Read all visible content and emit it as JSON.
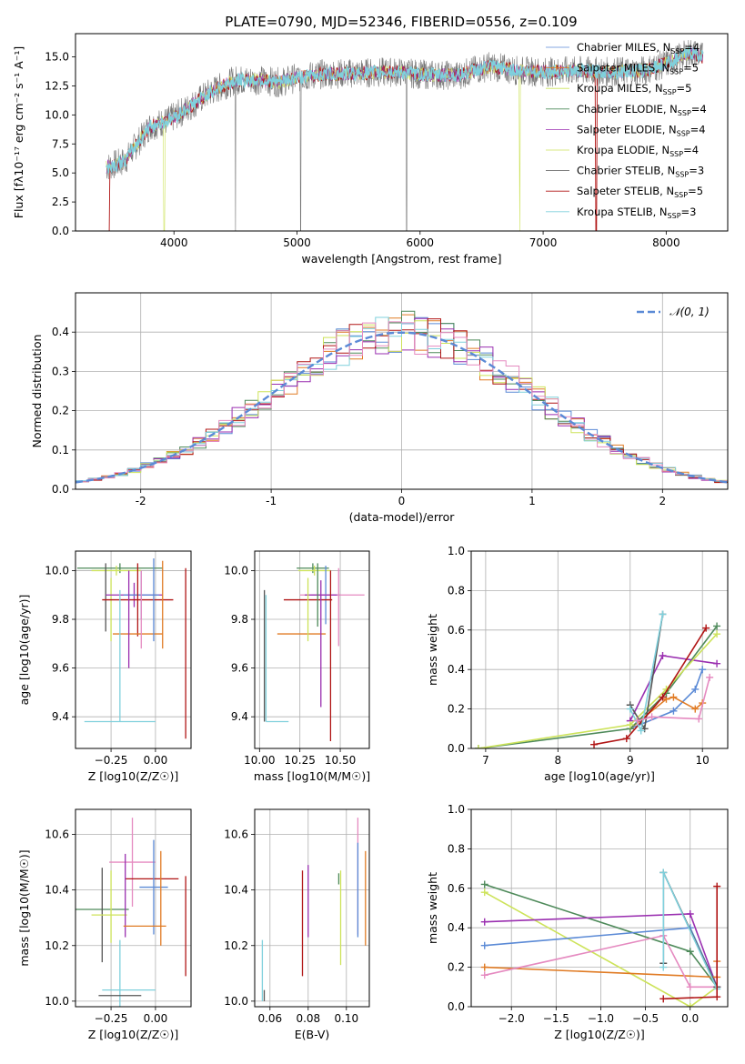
{
  "title": "PLATE=0790, MJD=52346, FIBERID=0556, z=0.109",
  "colors": {
    "blue": "#5b8ad6",
    "orange": "#e07b24",
    "green": "#4e8a5a",
    "purple": "#9a2fb0",
    "yellow": "#cde35a",
    "gray": "#555555",
    "red": "#b01515",
    "cyan": "#7fd0dc",
    "pink": "#e58ac0",
    "spectrum_gray": "#777777"
  },
  "chart_data": [
    {
      "id": "spectrum",
      "type": "line",
      "title": "PLATE=0790, MJD=52346, FIBERID=0556, z=0.109",
      "xlabel": "wavelength [Angstrom, rest frame]",
      "ylabel": "Flux [fλ10⁻¹⁷ erg cm⁻² s⁻¹ A⁻¹]",
      "xlim": [
        3200,
        8500
      ],
      "ylim": [
        0,
        17
      ],
      "xticks": [
        4000,
        5000,
        6000,
        7000,
        8000
      ],
      "yticks": [
        0.0,
        2.5,
        5.0,
        7.5,
        10.0,
        12.5,
        15.0
      ],
      "legend": "top-right",
      "grid": false,
      "x": [
        3450,
        3600,
        3800,
        3950,
        4100,
        4300,
        4500,
        4700,
        4861,
        5000,
        5200,
        5500,
        5800,
        6000,
        6300,
        6563,
        6800,
        7000,
        7300,
        7500,
        7800,
        8000,
        8200,
        8300
      ],
      "y": [
        5.5,
        6.0,
        9.0,
        9.5,
        10.5,
        12.0,
        13.0,
        13.0,
        12.8,
        13.2,
        13.5,
        13.6,
        13.7,
        13.5,
        13.4,
        14.2,
        13.8,
        13.7,
        13.8,
        13.7,
        13.8,
        14.4,
        15.4,
        15.0
      ],
      "series": [
        {
          "name": "Chabrier MILES, N_SSP=4",
          "color": "blue"
        },
        {
          "name": "Salpeter MILES, N_SSP=5",
          "color": "orange"
        },
        {
          "name": "Kroupa MILES, N_SSP=5",
          "color": "yellow"
        },
        {
          "name": "Chabrier ELODIE, N_SSP=4",
          "color": "green"
        },
        {
          "name": "Salpeter ELODIE, N_SSP=4",
          "color": "purple"
        },
        {
          "name": "Kroupa ELODIE, N_SSP=4",
          "color": "yellow"
        },
        {
          "name": "Chabrier STELIB, N_SSP=3",
          "color": "gray"
        },
        {
          "name": "Salpeter STELIB, N_SSP=5",
          "color": "red"
        },
        {
          "name": "Kroupa STELIB, N_SSP=3",
          "color": "cyan"
        }
      ],
      "legend_entries": [
        {
          "pre": "Chabrier MILES, N",
          "sub": "SSP",
          "post": "=4",
          "color": "blue"
        },
        {
          "pre": "Salpeter MILES, N",
          "sub": "SSP",
          "post": "=5",
          "color": "orange"
        },
        {
          "pre": "Kroupa MILES, N",
          "sub": "SSP",
          "post": "=5",
          "color": "yellow"
        },
        {
          "pre": "Chabrier ELODIE, N",
          "sub": "SSP",
          "post": "=4",
          "color": "green"
        },
        {
          "pre": "Salpeter ELODIE, N",
          "sub": "SSP",
          "post": "=4",
          "color": "purple"
        },
        {
          "pre": "Kroupa ELODIE, N",
          "sub": "SSP",
          "post": "=4",
          "color": "yellow"
        },
        {
          "pre": "Chabrier STELIB, N",
          "sub": "SSP",
          "post": "=3",
          "color": "gray"
        },
        {
          "pre": "Salpeter STELIB, N",
          "sub": "SSP",
          "post": "=5",
          "color": "red"
        },
        {
          "pre": "Kroupa STELIB, N",
          "sub": "SSP",
          "post": "=3",
          "color": "cyan"
        }
      ]
    },
    {
      "id": "residuals",
      "type": "line",
      "xlabel": "(data-model)/error",
      "ylabel": "Normed distribution",
      "xlim": [
        -2.5,
        2.5
      ],
      "ylim": [
        0,
        0.5
      ],
      "xticks": [
        -2,
        -1,
        0,
        1,
        2
      ],
      "yticks": [
        0.0,
        0.1,
        0.2,
        0.3,
        0.4
      ],
      "grid": true,
      "legend": "top-right",
      "legend_label": "𝒩(0, 1)",
      "bin_width": 0.1,
      "gaussian": {
        "mean": 0,
        "sigma": 1
      }
    },
    {
      "id": "age_vs_Z",
      "type": "scatter",
      "xlabel": "Z [log10(Z/Z☉)]",
      "ylabel": "age  [log10(age/yr)]",
      "xlim": [
        -0.45,
        0.2
      ],
      "ylim": [
        9.27,
        10.08
      ],
      "xticks": [
        -0.25,
        0.0
      ],
      "yticks": [
        9.4,
        9.6,
        9.8,
        10.0
      ],
      "grid": true,
      "points": [
        {
          "x": -0.2,
          "y": 10.01,
          "xerr": 0.24,
          "yerr": 0.02,
          "color": "green"
        },
        {
          "x": -0.22,
          "y": 10.0,
          "xerr": 0.14,
          "yerr": 0.02,
          "color": "yellow"
        },
        {
          "x": -0.28,
          "y": 9.89,
          "xerr": 0.0,
          "yerr": 0.14,
          "color": "gray"
        },
        {
          "x": -0.25,
          "y": 9.84,
          "xerr": 0.0,
          "yerr": 0.13,
          "color": "yellow"
        },
        {
          "x": -0.12,
          "y": 9.9,
          "xerr": 0.16,
          "yerr": 0.05,
          "color": "purple"
        },
        {
          "x": -0.08,
          "y": 9.9,
          "xerr": 0.1,
          "yerr": 0.1,
          "color": "blue"
        },
        {
          "x": -0.1,
          "y": 9.88,
          "xerr": 0.2,
          "yerr": 0.15,
          "color": "red"
        },
        {
          "x": -0.1,
          "y": 9.74,
          "xerr": 0.14,
          "yerr": 0.0,
          "color": "orange"
        },
        {
          "x": -0.08,
          "y": 9.84,
          "xerr": 0.0,
          "yerr": 0.16,
          "color": "pink"
        },
        {
          "x": -0.15,
          "y": 9.8,
          "xerr": 0.0,
          "yerr": 0.2,
          "color": "purple"
        },
        {
          "x": 0.04,
          "y": 9.86,
          "xerr": 0.0,
          "yerr": 0.18,
          "color": "orange"
        },
        {
          "x": 0.17,
          "y": 9.66,
          "xerr": 0.0,
          "yerr": 0.35,
          "color": "red"
        },
        {
          "x": -0.2,
          "y": 9.38,
          "xerr": 0.2,
          "yerr": 0.0,
          "color": "cyan"
        },
        {
          "x": -0.2,
          "y": 9.65,
          "xerr": 0.0,
          "yerr": 0.27,
          "color": "cyan"
        },
        {
          "x": -0.01,
          "y": 9.88,
          "xerr": 0.0,
          "yerr": 0.17,
          "color": "blue"
        }
      ]
    },
    {
      "id": "age_vs_mass",
      "type": "scatter",
      "xlabel": "mass [log10(M/M☉)]",
      "ylabel": "",
      "xlim": [
        9.97,
        10.68
      ],
      "ylim": [
        9.27,
        10.08
      ],
      "xticks": [
        10.0,
        10.25,
        10.5
      ],
      "yticks": [
        9.4,
        9.6,
        9.8,
        10.0
      ],
      "grid": true,
      "points": [
        {
          "x": 10.33,
          "y": 10.01,
          "xerr": 0.1,
          "yerr": 0.02,
          "color": "green"
        },
        {
          "x": 10.34,
          "y": 10.0,
          "xerr": 0.1,
          "yerr": 0.02,
          "color": "yellow"
        },
        {
          "x": 10.41,
          "y": 9.9,
          "xerr": 0.09,
          "yerr": 0.12,
          "color": "blue"
        },
        {
          "x": 10.45,
          "y": 9.9,
          "xerr": 0.2,
          "yerr": 0.0,
          "color": "pink"
        },
        {
          "x": 10.38,
          "y": 9.9,
          "xerr": 0.1,
          "yerr": 0.0,
          "color": "purple"
        },
        {
          "x": 10.3,
          "y": 9.88,
          "xerr": 0.15,
          "yerr": 0.0,
          "color": "red"
        },
        {
          "x": 10.26,
          "y": 9.74,
          "xerr": 0.15,
          "yerr": 0.0,
          "color": "orange"
        },
        {
          "x": 10.3,
          "y": 9.84,
          "xerr": 0.0,
          "yerr": 0.13,
          "color": "yellow"
        },
        {
          "x": 10.44,
          "y": 9.65,
          "xerr": 0.0,
          "yerr": 0.35,
          "color": "red"
        },
        {
          "x": 10.38,
          "y": 9.7,
          "xerr": 0.0,
          "yerr": 0.26,
          "color": "purple"
        },
        {
          "x": 10.49,
          "y": 9.85,
          "xerr": 0.0,
          "yerr": 0.16,
          "color": "pink"
        },
        {
          "x": 10.03,
          "y": 9.65,
          "xerr": 0.0,
          "yerr": 0.27,
          "color": "gray"
        },
        {
          "x": 10.04,
          "y": 9.64,
          "xerr": 0.0,
          "yerr": 0.26,
          "color": "cyan"
        },
        {
          "x": 10.11,
          "y": 9.38,
          "xerr": 0.07,
          "yerr": 0.0,
          "color": "cyan"
        },
        {
          "x": 10.36,
          "y": 9.9,
          "xerr": 0.0,
          "yerr": 0.13,
          "color": "green"
        }
      ]
    },
    {
      "id": "weight_vs_age",
      "type": "line",
      "xlabel": "age  [log10(age/yr)]",
      "ylabel": "mass weight",
      "xlim": [
        6.8,
        10.35
      ],
      "ylim": [
        0,
        1
      ],
      "xticks": [
        7,
        8,
        9,
        10
      ],
      "yticks": [
        0.0,
        0.2,
        0.4,
        0.6,
        0.8,
        1.0
      ],
      "grid": true,
      "series": [
        {
          "color": "blue",
          "x": [
            9.0,
            9.6,
            9.9,
            10.0
          ],
          "y": [
            0.1,
            0.19,
            0.3,
            0.4
          ]
        },
        {
          "color": "orange",
          "x": [
            9.0,
            9.5,
            9.6,
            9.9,
            10.0
          ],
          "y": [
            0.1,
            0.25,
            0.26,
            0.2,
            0.23
          ]
        },
        {
          "color": "green",
          "x": [
            6.9,
            9.0,
            9.5,
            10.2
          ],
          "y": [
            0.0,
            0.1,
            0.28,
            0.62
          ]
        },
        {
          "color": "purple",
          "x": [
            9.0,
            9.45,
            10.2
          ],
          "y": [
            0.14,
            0.47,
            0.43
          ]
        },
        {
          "color": "yellow",
          "x": [
            6.9,
            9.0,
            9.5,
            10.2
          ],
          "y": [
            0.0,
            0.12,
            0.3,
            0.58
          ]
        },
        {
          "color": "gray",
          "x": [
            9.0,
            9.2,
            9.45
          ],
          "y": [
            0.22,
            0.1,
            0.68
          ]
        },
        {
          "color": "red",
          "x": [
            8.5,
            8.95,
            9.45,
            10.05
          ],
          "y": [
            0.02,
            0.05,
            0.26,
            0.61
          ]
        },
        {
          "color": "cyan",
          "x": [
            9.0,
            9.15,
            9.45
          ],
          "y": [
            0.2,
            0.09,
            0.68
          ]
        },
        {
          "color": "pink",
          "x": [
            9.1,
            9.3,
            9.95,
            10.1
          ],
          "y": [
            0.14,
            0.16,
            0.15,
            0.36
          ]
        }
      ]
    },
    {
      "id": "mass_vs_Z",
      "type": "scatter",
      "xlabel": "Z [log10(Z/Z☉)]",
      "ylabel": "mass [log10(M/M☉)]",
      "xlim": [
        -0.45,
        0.2
      ],
      "ylim": [
        9.98,
        10.69
      ],
      "xticks": [
        -0.25,
        0.0
      ],
      "yticks": [
        10.0,
        10.2,
        10.4,
        10.6
      ],
      "grid": true,
      "points": [
        {
          "x": -0.13,
          "y": 10.5,
          "xerr": 0.13,
          "yerr": 0.16,
          "color": "pink"
        },
        {
          "x": -0.02,
          "y": 10.44,
          "xerr": 0.15,
          "yerr": 0.0,
          "color": "red"
        },
        {
          "x": -0.01,
          "y": 10.41,
          "xerr": 0.08,
          "yerr": 0.17,
          "color": "blue"
        },
        {
          "x": -0.3,
          "y": 10.33,
          "xerr": 0.15,
          "yerr": 0.0,
          "color": "green"
        },
        {
          "x": -0.3,
          "y": 10.31,
          "xerr": 0.0,
          "yerr": 0.17,
          "color": "gray"
        },
        {
          "x": -0.26,
          "y": 10.31,
          "xerr": 0.1,
          "yerr": 0.0,
          "color": "yellow"
        },
        {
          "x": -0.25,
          "y": 10.34,
          "xerr": 0.0,
          "yerr": 0.13,
          "color": "yellow"
        },
        {
          "x": -0.17,
          "y": 10.38,
          "xerr": 0.0,
          "yerr": 0.15,
          "color": "purple"
        },
        {
          "x": -0.06,
          "y": 10.27,
          "xerr": 0.12,
          "yerr": 0.0,
          "color": "orange"
        },
        {
          "x": 0.03,
          "y": 10.37,
          "xerr": 0.0,
          "yerr": 0.17,
          "color": "orange"
        },
        {
          "x": 0.17,
          "y": 10.27,
          "xerr": 0.0,
          "yerr": 0.18,
          "color": "red"
        },
        {
          "x": -0.2,
          "y": 10.1,
          "xerr": 0.0,
          "yerr": 0.12,
          "color": "cyan"
        },
        {
          "x": -0.15,
          "y": 10.04,
          "xerr": 0.15,
          "yerr": 0.0,
          "color": "cyan"
        },
        {
          "x": -0.2,
          "y": 10.02,
          "xerr": 0.12,
          "yerr": 0.0,
          "color": "gray"
        }
      ]
    },
    {
      "id": "mass_vs_EBV",
      "type": "scatter",
      "xlabel": "E(B-V)",
      "ylabel": "",
      "xlim": [
        0.052,
        0.112
      ],
      "ylim": [
        9.98,
        10.69
      ],
      "xticks": [
        0.06,
        0.08,
        0.1
      ],
      "yticks": [
        10.0,
        10.2,
        10.4,
        10.6
      ],
      "grid": true,
      "points": [
        {
          "x": 0.056,
          "y": 10.11,
          "xerr": 0.0,
          "yerr": 0.11,
          "color": "cyan"
        },
        {
          "x": 0.057,
          "y": 10.02,
          "xerr": 0.0,
          "yerr": 0.02,
          "color": "gray"
        },
        {
          "x": 0.077,
          "y": 10.28,
          "xerr": 0.0,
          "yerr": 0.19,
          "color": "red"
        },
        {
          "x": 0.08,
          "y": 10.36,
          "xerr": 0.0,
          "yerr": 0.13,
          "color": "purple"
        },
        {
          "x": 0.097,
          "y": 10.3,
          "xerr": 0.0,
          "yerr": 0.17,
          "color": "yellow"
        },
        {
          "x": 0.096,
          "y": 10.44,
          "xerr": 0.0,
          "yerr": 0.02,
          "color": "green"
        },
        {
          "x": 0.106,
          "y": 10.45,
          "xerr": 0.0,
          "yerr": 0.21,
          "color": "pink"
        },
        {
          "x": 0.106,
          "y": 10.4,
          "xerr": 0.0,
          "yerr": 0.17,
          "color": "blue"
        },
        {
          "x": 0.11,
          "y": 10.37,
          "xerr": 0.0,
          "yerr": 0.17,
          "color": "orange"
        }
      ]
    },
    {
      "id": "weight_vs_Z",
      "type": "line",
      "xlabel": "Z [log10(Z/Z☉)]",
      "ylabel": "mass weight",
      "xlim": [
        -2.45,
        0.42
      ],
      "ylim": [
        0,
        1
      ],
      "xticks": [
        -2.0,
        -1.5,
        -1.0,
        -0.5,
        0.0
      ],
      "yticks": [
        0.0,
        0.2,
        0.4,
        0.6,
        0.8,
        1.0
      ],
      "grid": true,
      "series": [
        {
          "color": "green",
          "x": [
            -2.3,
            0.0,
            0.3
          ],
          "y": [
            0.62,
            0.28,
            0.1
          ]
        },
        {
          "color": "yellow",
          "x": [
            -2.3,
            0.0,
            0.3
          ],
          "y": [
            0.58,
            0.0,
            0.1
          ]
        },
        {
          "color": "purple",
          "x": [
            -2.3,
            0.0,
            0.3
          ],
          "y": [
            0.43,
            0.47,
            0.1
          ]
        },
        {
          "color": "blue",
          "x": [
            -2.3,
            0.0,
            0.3
          ],
          "y": [
            0.31,
            0.4,
            0.1
          ]
        },
        {
          "color": "orange",
          "x": [
            -2.3,
            0.3,
            0.3
          ],
          "y": [
            0.2,
            0.15,
            0.23
          ]
        },
        {
          "color": "pink",
          "x": [
            -2.3,
            -0.3,
            0.0,
            0.3
          ],
          "y": [
            0.16,
            0.36,
            0.1,
            0.1
          ]
        },
        {
          "color": "gray",
          "x": [
            -0.3,
            -0.3,
            0.3
          ],
          "y": [
            0.22,
            0.68,
            0.1
          ]
        },
        {
          "color": "cyan",
          "x": [
            -0.3,
            -0.3,
            0.3
          ],
          "y": [
            0.2,
            0.68,
            0.09
          ]
        },
        {
          "color": "red",
          "x": [
            -0.3,
            0.3,
            0.3
          ],
          "y": [
            0.04,
            0.05,
            0.61
          ]
        }
      ]
    }
  ]
}
